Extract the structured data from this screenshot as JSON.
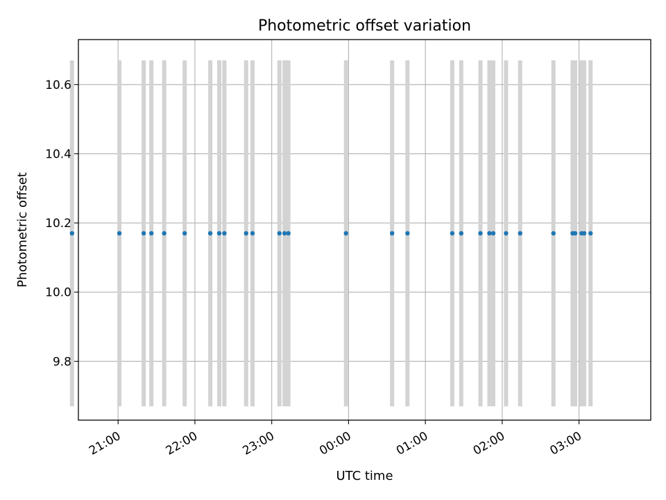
{
  "chart_data": {
    "type": "scatter",
    "title": "Photometric offset variation",
    "xlabel": "UTC time",
    "ylabel": "Photometric offset",
    "grid": true,
    "x_ticks": [
      "21:00",
      "22:00",
      "23:00",
      "00:00",
      "01:00",
      "02:00",
      "03:00"
    ],
    "y_ticks": [
      "9.8",
      "10.0",
      "10.2",
      "10.4",
      "10.6"
    ],
    "y_tick_values": [
      9.8,
      10.0,
      10.2,
      10.4,
      10.6
    ],
    "xlim": [
      "20:29",
      "03:56"
    ],
    "ylim": [
      9.63,
      10.73
    ],
    "error_bar_range": [
      9.67,
      10.67
    ],
    "colors": {
      "points": "#1f77b4",
      "error_bars": "#d3d3d3",
      "grid": "#b0b0b0"
    },
    "series": [
      {
        "x": [
          "20:24",
          "21:01",
          "21:20",
          "21:26",
          "21:36",
          "21:52",
          "22:12",
          "22:19",
          "22:23",
          "22:40",
          "22:45",
          "23:06",
          "23:10",
          "23:13",
          "23:58",
          "00:34",
          "00:46",
          "01:21",
          "01:28",
          "01:43",
          "01:50",
          "01:53",
          "02:03",
          "02:14",
          "02:40",
          "02:55",
          "02:57",
          "03:02",
          "03:04",
          "03:09"
        ],
        "y": [
          10.17,
          10.17,
          10.17,
          10.17,
          10.17,
          10.17,
          10.17,
          10.17,
          10.17,
          10.17,
          10.17,
          10.17,
          10.17,
          10.17,
          10.17,
          10.17,
          10.17,
          10.17,
          10.17,
          10.17,
          10.17,
          10.17,
          10.17,
          10.17,
          10.17,
          10.17,
          10.17,
          10.17,
          10.17,
          10.17
        ],
        "yerr": 0.5
      }
    ]
  }
}
